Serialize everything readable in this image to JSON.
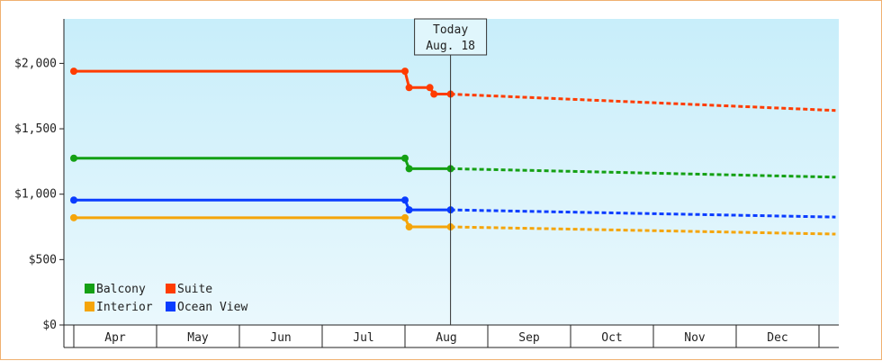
{
  "chart_data": {
    "type": "line",
    "y_ticks": [
      {
        "value": 0,
        "label": "$0"
      },
      {
        "value": 500,
        "label": "$500"
      },
      {
        "value": 1000,
        "label": "$1,000"
      },
      {
        "value": 1500,
        "label": "$1,500"
      },
      {
        "value": 2000,
        "label": "$2,000"
      }
    ],
    "ylim": [
      0,
      2340
    ],
    "categories": [
      "Apr",
      "May",
      "Jun",
      "Jul",
      "Aug",
      "Sep",
      "Oct",
      "Nov",
      "Dec"
    ],
    "today": {
      "line1": "Today",
      "line2": "Aug. 18",
      "x": 4.55
    },
    "forecast_end_x": 9.2,
    "legend_placement": "bottom-left",
    "grid": false,
    "series": [
      {
        "name": "Suite",
        "color": "#ff3c00",
        "forecast_end": 1640,
        "points": [
          [
            0,
            1940
          ],
          [
            4.0,
            1940
          ],
          [
            4.05,
            1815
          ],
          [
            4.3,
            1815
          ],
          [
            4.35,
            1765
          ],
          [
            4.55,
            1765
          ]
        ]
      },
      {
        "name": "Balcony",
        "color": "#14a014",
        "forecast_end": 1130,
        "points": [
          [
            0,
            1275
          ],
          [
            4.0,
            1275
          ],
          [
            4.05,
            1195
          ],
          [
            4.55,
            1195
          ]
        ]
      },
      {
        "name": "Ocean View",
        "color": "#0a3cff",
        "forecast_end": 825,
        "points": [
          [
            0,
            955
          ],
          [
            4.0,
            955
          ],
          [
            4.05,
            880
          ],
          [
            4.55,
            880
          ]
        ]
      },
      {
        "name": "Interior",
        "color": "#f5a50a",
        "forecast_end": 695,
        "points": [
          [
            0,
            820
          ],
          [
            4.0,
            820
          ],
          [
            4.05,
            750
          ],
          [
            4.55,
            750
          ]
        ]
      }
    ],
    "legend": [
      {
        "name": "Balcony",
        "color": "#14a014"
      },
      {
        "name": "Suite",
        "color": "#ff3c00"
      },
      {
        "name": "Interior",
        "color": "#f5a50a"
      },
      {
        "name": "Ocean View",
        "color": "#0a3cff"
      }
    ]
  }
}
